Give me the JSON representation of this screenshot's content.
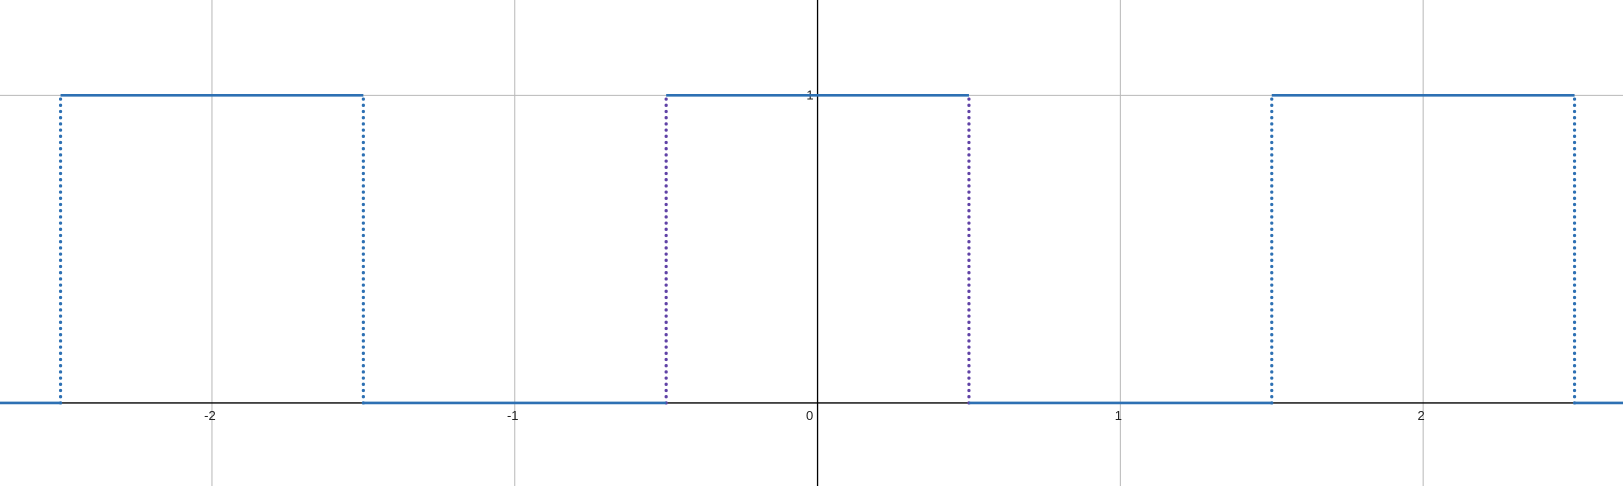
{
  "chart_data": {
    "type": "line",
    "title": "",
    "xlabel": "",
    "ylabel": "",
    "xlim": [
      -2.7,
      2.66
    ],
    "ylim": [
      -0.27,
      1.31
    ],
    "grid": true,
    "x_ticks": [
      -2,
      -1,
      0,
      1,
      2
    ],
    "x_tick_labels": [
      "-2",
      "-1",
      "0",
      "1",
      "2"
    ],
    "y_ticks": [
      1
    ],
    "y_tick_labels": [
      "1"
    ],
    "colors": {
      "curve": "#2d70b3",
      "jump_blue": "#2d70b3",
      "jump_purple": "#6042a6",
      "grid": "#b8b8b8",
      "axis": "#000000"
    },
    "series": [
      {
        "segments": [
          {
            "x": [
              -2.7,
              -2.5
            ],
            "y": [
              0,
              0
            ]
          },
          {
            "x": [
              -2.5,
              -1.5
            ],
            "y": [
              1,
              1
            ]
          },
          {
            "x": [
              -1.5,
              -0.5
            ],
            "y": [
              0,
              0
            ]
          },
          {
            "x": [
              -0.5,
              0.5
            ],
            "y": [
              1,
              1
            ]
          },
          {
            "x": [
              0.5,
              1.5
            ],
            "y": [
              0,
              0
            ]
          },
          {
            "x": [
              1.5,
              2.5
            ],
            "y": [
              1,
              1
            ]
          },
          {
            "x": [
              2.5,
              2.66
            ],
            "y": [
              0,
              0
            ]
          }
        ],
        "jumps": [
          {
            "x": -2.5,
            "y": [
              0,
              1
            ],
            "color": "blue"
          },
          {
            "x": -1.5,
            "y": [
              0,
              1
            ],
            "color": "blue"
          },
          {
            "x": -0.5,
            "y": [
              0,
              1
            ],
            "color": "purple"
          },
          {
            "x": 0.5,
            "y": [
              0,
              1
            ],
            "color": "purple"
          },
          {
            "x": 1.5,
            "y": [
              0,
              1
            ],
            "color": "blue"
          },
          {
            "x": 2.5,
            "y": [
              0,
              1
            ],
            "color": "blue"
          }
        ]
      }
    ]
  }
}
